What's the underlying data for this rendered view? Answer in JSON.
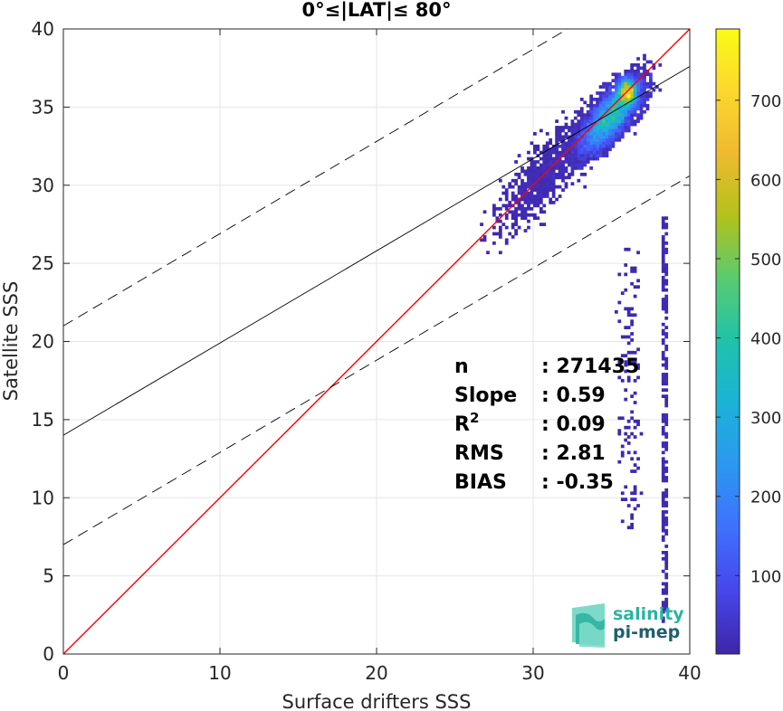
{
  "chart_data": {
    "type": "heatmap",
    "title": "0°≤|LAT|≤ 80°",
    "xlabel": "Surface drifters SSS",
    "ylabel": "Satellite SSS",
    "xlim": [
      0,
      40
    ],
    "ylim": [
      0,
      40
    ],
    "xticks": [
      0,
      10,
      20,
      30,
      40
    ],
    "yticks": [
      0,
      5,
      10,
      15,
      20,
      25,
      30,
      35,
      40
    ],
    "grid": true,
    "colormap": "parula",
    "colorbar": {
      "range": [
        1,
        790
      ],
      "ticks": [
        100,
        200,
        300,
        400,
        500,
        600,
        700
      ],
      "colors": [
        "#3e26a8",
        "#4746eb",
        "#3f70fe",
        "#2c97f0",
        "#1bb2d8",
        "#1fc2aa",
        "#58cb71",
        "#b2c21b",
        "#eeba30",
        "#fcd72e",
        "#f9fb15"
      ]
    },
    "lines": [
      {
        "label": "one-to-one",
        "color": "#ff0000",
        "style": "solid",
        "slope": 1,
        "intercept": 0
      },
      {
        "label": "regression",
        "color": "#000000",
        "style": "solid",
        "slope": 0.59,
        "intercept": 14
      },
      {
        "label": "regression + 7",
        "color": "#000000",
        "style": "dashed",
        "slope": 0.59,
        "intercept": 21
      },
      {
        "label": "regression - 7",
        "color": "#000000",
        "style": "dashed",
        "slope": 0.59,
        "intercept": 7
      }
    ],
    "density_core": {
      "x": 35,
      "y": 34.5
    },
    "density_peak": {
      "x": 36,
      "y": 36
    },
    "stats": [
      {
        "label": "n",
        "value": ": 271435"
      },
      {
        "label": "Slope",
        "value": ": 0.59"
      },
      {
        "label": "R",
        "sup": "2",
        "value": ": 0.09"
      },
      {
        "label": "RMS",
        "value": ": 2.81"
      },
      {
        "label": "BIAS",
        "value": ": -0.35"
      }
    ]
  },
  "logo": {
    "line1": "salinity",
    "line2": "pi-mep",
    "color1": "#2ab5a0",
    "color2": "#1f5f6e"
  }
}
